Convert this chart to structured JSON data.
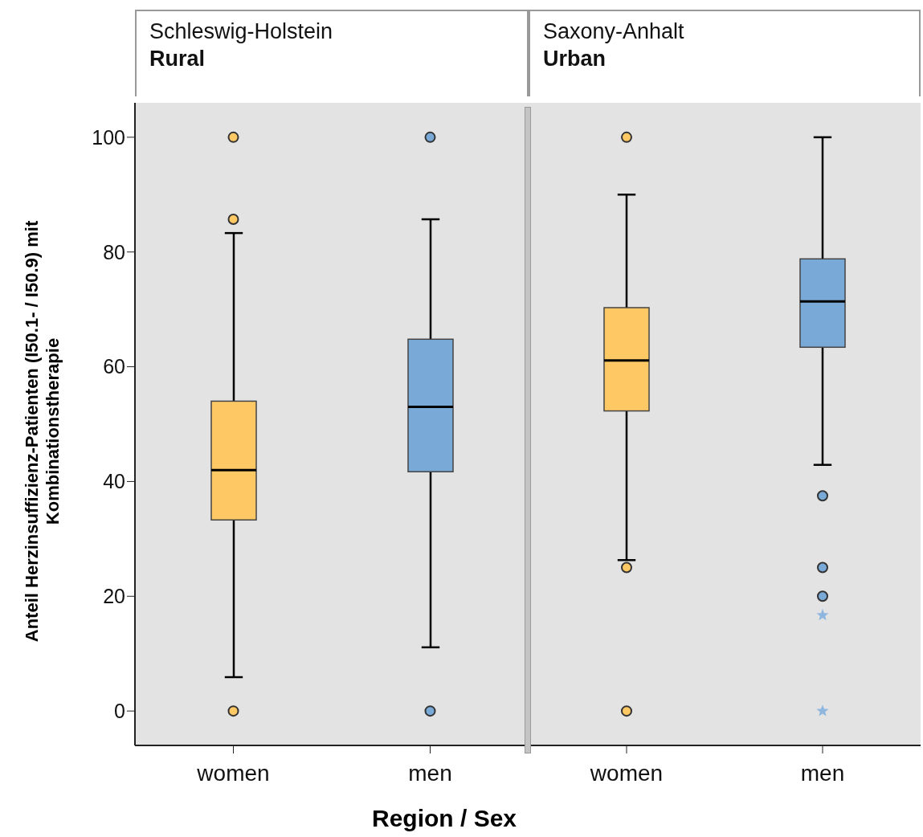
{
  "chart_data": [
    {
      "type": "box",
      "title": "Schleswig-Holstein",
      "subtitle": "Rural",
      "xlabel": "Region / Sex",
      "ylabel": "Anteil Herzinsuffizienz-Patienten (I50.1- / I50.9) mit Kombinationstherapie",
      "categories": [
        "women",
        "men"
      ],
      "colors": [
        "#fec965",
        "#79aad7"
      ],
      "boxes": [
        {
          "low": 5.9,
          "q1": 33.3,
          "median": 42,
          "q3": 54,
          "high": 83.3,
          "outliers": [
            100,
            85.7,
            0
          ]
        },
        {
          "low": 11.1,
          "q1": 41.7,
          "median": 53,
          "q3": 64.8,
          "high": 85.7,
          "outliers": [
            100,
            0
          ]
        }
      ],
      "ylim": [
        -6,
        106
      ],
      "yticks": [
        0,
        20,
        40,
        60,
        80,
        100
      ],
      "grid": false,
      "legend": false
    },
    {
      "type": "box",
      "title": "Saxony-Anhalt",
      "subtitle": "Urban",
      "categories": [
        "women",
        "men"
      ],
      "colors": [
        "#fec965",
        "#79aad7"
      ],
      "boxes": [
        {
          "low": 26.3,
          "q1": 52.3,
          "median": 61.1,
          "q3": 70.3,
          "high": 90,
          "outliers": [
            100,
            25,
            0
          ]
        },
        {
          "low": 42.9,
          "q1": 63.4,
          "median": 71.4,
          "q3": 78.8,
          "high": 100,
          "outliers": [
            37.5,
            25,
            20
          ]
        }
      ],
      "series": [
        {
          "type": "scatter",
          "x": [
            "men",
            "men"
          ],
          "values": [
            16.7,
            0
          ],
          "marker": "star",
          "color": "#8fb6de"
        }
      ],
      "ylim": [
        -6,
        106
      ],
      "yticks": [
        0,
        20,
        40,
        60,
        80,
        100
      ],
      "grid": false,
      "legend": false,
      "tick_labels": "x"
    }
  ]
}
